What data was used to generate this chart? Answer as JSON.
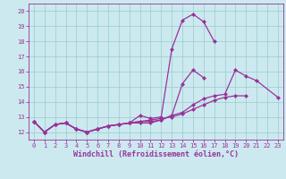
{
  "title": "",
  "xlabel": "Windchill (Refroidissement éolien,°C)",
  "ylabel": "",
  "bg_color": "#cce9f0",
  "line_color": "#993399",
  "grid_color": "#99cccc",
  "xlim": [
    -0.5,
    23.5
  ],
  "ylim": [
    11.5,
    20.5
  ],
  "yticks": [
    12,
    13,
    14,
    15,
    16,
    17,
    18,
    19,
    20
  ],
  "xticks": [
    0,
    1,
    2,
    3,
    4,
    5,
    6,
    7,
    8,
    9,
    10,
    11,
    12,
    13,
    14,
    15,
    16,
    17,
    18,
    19,
    20,
    21,
    22,
    23
  ],
  "series": [
    {
      "x": [
        0,
        1,
        2,
        3,
        4,
        5,
        6,
        7,
        8,
        9,
        10,
        11,
        12,
        13,
        14,
        15,
        16,
        17
      ],
      "y": [
        12.7,
        12.0,
        12.5,
        12.6,
        12.2,
        12.0,
        12.2,
        12.4,
        12.5,
        12.6,
        13.1,
        12.9,
        13.0,
        17.5,
        19.4,
        19.8,
        19.3,
        18.0
      ]
    },
    {
      "x": [
        0,
        1,
        2,
        3,
        4,
        5,
        6,
        7,
        8,
        9,
        10,
        11,
        12,
        13,
        14,
        15,
        16,
        17,
        18,
        19,
        20,
        21,
        23
      ],
      "y": [
        12.7,
        12.0,
        12.5,
        12.6,
        12.2,
        12.0,
        12.2,
        12.4,
        12.5,
        12.6,
        12.7,
        12.7,
        12.8,
        13.1,
        13.3,
        13.8,
        14.2,
        14.4,
        14.5,
        16.1,
        15.7,
        15.4,
        14.3
      ]
    },
    {
      "x": [
        0,
        1,
        2,
        3,
        4,
        5,
        6,
        7,
        8,
        9,
        10,
        11,
        12,
        13,
        14,
        15,
        16,
        17,
        18,
        19,
        20
      ],
      "y": [
        12.7,
        12.0,
        12.5,
        12.6,
        12.2,
        12.0,
        12.2,
        12.4,
        12.5,
        12.6,
        12.7,
        12.8,
        12.9,
        13.0,
        13.2,
        13.5,
        13.8,
        14.1,
        14.3,
        14.4,
        14.4
      ]
    },
    {
      "x": [
        0,
        1,
        2,
        3,
        4,
        5,
        6,
        7,
        8,
        9,
        10,
        11,
        12,
        13,
        14,
        15,
        16
      ],
      "y": [
        12.7,
        12.0,
        12.5,
        12.6,
        12.2,
        12.0,
        12.2,
        12.4,
        12.5,
        12.6,
        12.6,
        12.6,
        12.8,
        13.1,
        15.2,
        16.1,
        15.6
      ]
    }
  ],
  "marker": "D",
  "markersize": 2.0,
  "linewidth": 0.9,
  "tick_fontsize": 5.0,
  "label_fontsize": 6.0
}
